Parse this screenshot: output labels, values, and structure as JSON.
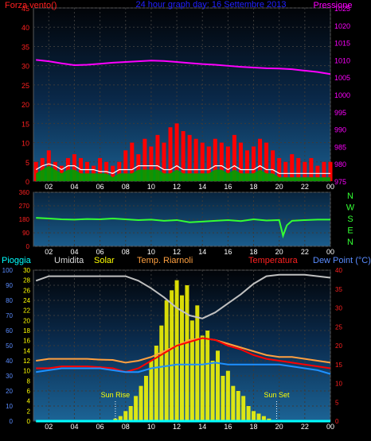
{
  "colors": {
    "wind": "#ff0000",
    "gust_fill": "#00a000",
    "avg_line": "#ffffff",
    "pressure": "#ff00ff",
    "direction": "#33ff33",
    "rain": "#00ffff",
    "humidity": "#c0c0c0",
    "solar": "#ffff00",
    "temp": "#ff0000",
    "dewpoint": "#1e90ff",
    "appear": "#ffa040",
    "tick_text": "#ffffff",
    "top_left_text": "#ff2020",
    "title_text": "#2020ff",
    "bot_axis_left": "#5a8cff",
    "bot_axis_right": "#ff2020"
  },
  "x_ticks": [
    "02",
    "04",
    "06",
    "08",
    "10",
    "12",
    "14",
    "16",
    "18",
    "20",
    "22",
    "00"
  ],
  "chart_data": [
    {
      "type": "bar",
      "title": "24 hour graph day: 16 Settembre 2013",
      "left_label": "Forza vento()",
      "right_label": "Pressione",
      "y_left_ticks": [
        "0",
        "5",
        "10",
        "15",
        "20",
        "25",
        "30",
        "35",
        "40",
        "45"
      ],
      "y_right_ticks": [
        "975",
        "980",
        "985",
        "990",
        "995",
        "1000",
        "1005",
        "1010",
        "1015",
        "1020",
        "1025"
      ],
      "y_left_range": [
        0,
        45
      ],
      "y_right_range": [
        975,
        1025
      ],
      "x_range_hours": [
        0.8,
        24
      ],
      "series": [
        {
          "name": "Forza vento()",
          "kind": "bars",
          "x": [
            1,
            1.5,
            2,
            2.5,
            3,
            3.5,
            4,
            4.5,
            5,
            5.5,
            6,
            6.5,
            7,
            7.5,
            8,
            8.5,
            9,
            9.5,
            10,
            10.5,
            11,
            11.5,
            12,
            12.5,
            13,
            13.5,
            14,
            14.5,
            15,
            15.5,
            16,
            16.5,
            17,
            17.5,
            18,
            18.5,
            19,
            19.5,
            20,
            20.5,
            21,
            21.5,
            22,
            22.5,
            23,
            23.5,
            24
          ],
          "values": [
            5,
            6,
            8,
            5,
            4,
            6,
            7,
            6,
            5,
            4,
            6,
            5,
            4,
            5,
            8,
            10,
            7,
            11,
            9,
            12,
            10,
            14,
            15,
            13,
            12,
            11,
            10,
            9,
            11,
            10,
            9,
            12,
            10,
            8,
            9,
            11,
            10,
            8,
            6,
            5,
            7,
            6,
            5,
            6,
            4,
            5,
            5
          ]
        },
        {
          "name": "",
          "kind": "area",
          "x": [
            1,
            1.5,
            2,
            2.5,
            3,
            3.5,
            4,
            4.5,
            5,
            5.5,
            6,
            6.5,
            7,
            7.5,
            8,
            8.5,
            9,
            9.5,
            10,
            10.5,
            11,
            11.5,
            12,
            12.5,
            13,
            13.5,
            14,
            14.5,
            15,
            15.5,
            16,
            16.5,
            17,
            17.5,
            18,
            18.5,
            19,
            19.5,
            20,
            20.5,
            21,
            21.5,
            22,
            22.5,
            23,
            23.5,
            24
          ],
          "values": [
            2,
            3,
            4,
            3,
            2,
            3,
            3,
            2,
            2,
            2,
            2,
            2,
            1,
            2,
            2,
            2,
            3,
            3,
            3,
            3,
            2,
            2,
            3,
            2,
            2,
            2,
            2,
            2,
            3,
            3,
            2,
            3,
            2,
            2,
            2,
            3,
            2,
            2,
            1,
            1,
            1,
            1,
            1,
            1,
            1,
            1,
            1
          ]
        },
        {
          "name": "",
          "kind": "line",
          "x": [
            1,
            1.5,
            2,
            2.5,
            3,
            3.5,
            4,
            4.5,
            5,
            5.5,
            6,
            6.5,
            7,
            7.5,
            8,
            8.5,
            9,
            9.5,
            10,
            10.5,
            11,
            11.5,
            12,
            12.5,
            13,
            13.5,
            14,
            14.5,
            15,
            15.5,
            16,
            16.5,
            17,
            17.5,
            18,
            18.5,
            19,
            19.5,
            20,
            20.5,
            21,
            21.5,
            22,
            22.5,
            23,
            23.5,
            24
          ],
          "values": [
            3,
            4,
            4.5,
            4,
            3,
            4,
            4,
            3,
            3,
            3,
            2.5,
            2.5,
            2,
            3,
            3,
            3,
            4,
            4,
            4,
            4,
            3,
            3,
            4,
            3,
            3,
            3,
            3,
            3,
            4,
            4,
            3,
            4,
            3,
            3,
            3,
            4,
            3,
            3,
            2,
            2,
            2,
            2,
            2,
            2,
            2,
            2,
            2
          ]
        },
        {
          "name": "Pressione",
          "kind": "line",
          "axis": "right",
          "x": [
            1,
            2,
            3,
            4,
            5,
            6,
            7,
            8,
            9,
            10,
            11,
            12,
            13,
            14,
            15,
            16,
            17,
            18,
            19,
            20,
            21,
            22,
            23,
            24
          ],
          "values": [
            1010,
            1009.6,
            1009,
            1008.5,
            1008.6,
            1008.9,
            1009.2,
            1009.4,
            1009.6,
            1009.8,
            1009.7,
            1009.4,
            1009.1,
            1008.8,
            1008.6,
            1008.3,
            1008,
            1007.8,
            1007.6,
            1007.5,
            1007.3,
            1006.9,
            1006.5,
            1005.9
          ]
        }
      ]
    },
    {
      "type": "line",
      "title": "",
      "y_ticks": [
        "0",
        "90",
        "180",
        "270",
        "360"
      ],
      "y_range": [
        0,
        360
      ],
      "right_labels": [
        "N",
        "W",
        "S",
        "E",
        "N"
      ],
      "x_range_hours": [
        0.8,
        24
      ],
      "series": [
        {
          "name": "",
          "x": [
            1,
            2,
            3,
            4,
            5,
            6,
            7,
            8,
            9,
            10,
            11,
            12,
            13,
            14,
            15,
            16,
            17,
            18,
            19,
            20,
            20.3,
            20.6,
            21,
            22,
            23,
            24
          ],
          "values": [
            190,
            185,
            180,
            178,
            182,
            180,
            185,
            180,
            175,
            178,
            170,
            175,
            160,
            165,
            170,
            175,
            168,
            180,
            172,
            175,
            70,
            140,
            170,
            175,
            178,
            178
          ]
        }
      ]
    },
    {
      "type": "line",
      "title": "",
      "legend": [
        "Pioggia",
        "Umidita",
        "Solar",
        "Temp. Riarnoli",
        "Temperatura",
        "Dew Point (°C)"
      ],
      "y_left_ticks": [
        "0",
        "10",
        "20",
        "30",
        "40",
        "50",
        "60",
        "70",
        "80",
        "90",
        "100"
      ],
      "y_mid_ticks": [
        "0",
        "2",
        "4",
        "6",
        "8",
        "10",
        "12",
        "14",
        "16",
        "18",
        "20",
        "22",
        "24",
        "26",
        "28",
        "30"
      ],
      "y_right_ticks": [
        "0",
        "5",
        "10",
        "15",
        "20",
        "25",
        "30",
        "35",
        "40"
      ],
      "y_left_range": [
        0,
        100
      ],
      "y_mid_range": [
        0,
        30
      ],
      "y_right_range": [
        0,
        40
      ],
      "annotations": [
        {
          "text": "Sun Rise",
          "x": 7.2
        },
        {
          "text": "Sun Set",
          "x": 19.8
        }
      ],
      "x_range_hours": [
        0.8,
        24
      ],
      "series": [
        {
          "name": "Umidita",
          "axis": "left",
          "x": [
            1,
            2,
            3,
            4,
            5,
            6,
            7,
            8,
            9,
            10,
            11,
            12,
            13,
            14,
            15,
            16,
            17,
            18,
            19,
            20,
            21,
            22,
            23,
            24
          ],
          "values": [
            93,
            96,
            96,
            96,
            96,
            96,
            96,
            96,
            93,
            88,
            82,
            75,
            70,
            68,
            72,
            78,
            84,
            91,
            96,
            97,
            97,
            97,
            96,
            95
          ]
        },
        {
          "name": "Solar",
          "axis": "mid",
          "kind": "bars",
          "x": [
            7.2,
            7.6,
            8,
            8.4,
            8.8,
            9.2,
            9.6,
            10,
            10.4,
            10.8,
            11.2,
            11.6,
            12,
            12.4,
            12.8,
            13.2,
            13.6,
            14,
            14.4,
            14.8,
            15.2,
            15.6,
            16,
            16.4,
            16.8,
            17.2,
            17.6,
            18,
            18.4,
            18.8,
            19.2,
            19.6
          ],
          "values": [
            0.5,
            1,
            2,
            3,
            5,
            7,
            9,
            12,
            15,
            19,
            24,
            26,
            28,
            25,
            27,
            20,
            23,
            17,
            18,
            12,
            14,
            9,
            10,
            7,
            6,
            5,
            3,
            2,
            1.5,
            1,
            0.5,
            0.2
          ]
        },
        {
          "name": "Temp. Riarnoli",
          "axis": "right",
          "x": [
            1,
            2,
            3,
            4,
            5,
            6,
            7,
            8,
            9,
            10,
            11,
            12,
            13,
            14,
            15,
            16,
            17,
            18,
            19,
            20,
            21,
            22,
            23,
            24
          ],
          "values": [
            16,
            16.5,
            16.5,
            16.5,
            16.5,
            16.3,
            16.2,
            15.5,
            16,
            17,
            18.5,
            20,
            21.5,
            22,
            21.5,
            20.5,
            19.5,
            18.5,
            17.5,
            17,
            17,
            16.5,
            16,
            15.5
          ]
        },
        {
          "name": "Temperatura",
          "axis": "right",
          "x": [
            1,
            2,
            3,
            4,
            5,
            6,
            7,
            8,
            9,
            10,
            11,
            12,
            13,
            14,
            15,
            16,
            17,
            18,
            19,
            20,
            21,
            22,
            23,
            24
          ],
          "values": [
            14,
            14,
            14.5,
            14.5,
            14.5,
            14.3,
            14,
            13,
            14,
            16,
            18,
            20,
            21,
            22,
            21.5,
            20,
            19,
            17.5,
            16.5,
            16,
            15.5,
            15,
            14.5,
            14
          ]
        },
        {
          "name": "Dew Point (°C)",
          "axis": "right",
          "x": [
            1,
            2,
            3,
            4,
            5,
            6,
            7,
            8,
            9,
            10,
            11,
            12,
            13,
            14,
            15,
            16,
            17,
            18,
            19,
            20,
            21,
            22,
            23,
            24
          ],
          "values": [
            13,
            13.5,
            14,
            14,
            14,
            14,
            13.5,
            13,
            13,
            14,
            14.5,
            15,
            15,
            15,
            15.5,
            15,
            15,
            15,
            15,
            15,
            14.5,
            14,
            13.5,
            12.5
          ]
        },
        {
          "name": "Pioggia",
          "axis": "left",
          "x": [
            1,
            24
          ],
          "values": [
            0,
            0
          ]
        }
      ]
    }
  ]
}
